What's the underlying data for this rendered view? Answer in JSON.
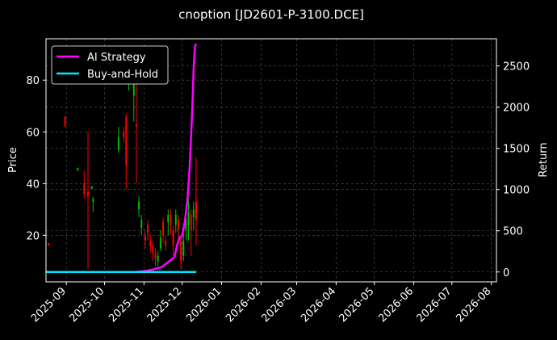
{
  "chart_data": {
    "type": "line",
    "title": "cnoption [JD2601-P-3100.DCE]",
    "xlabel": "",
    "ylabel": "Price",
    "y2label": "Return",
    "x_ticks": [
      "2025-09",
      "2025-10",
      "2025-11",
      "2025-12",
      "2026-01",
      "2026-02",
      "2026-03",
      "2026-04",
      "2026-05",
      "2026-06",
      "2026-07",
      "2026-08"
    ],
    "ylim": [
      2,
      96
    ],
    "y_ticks": [
      20,
      40,
      60,
      80
    ],
    "y2lim": [
      -120,
      2830
    ],
    "y2_ticks": [
      0,
      500,
      1000,
      1500,
      2000,
      2500
    ],
    "xlim": [
      "2025-08-16",
      "2026-08-05"
    ],
    "grid": true,
    "legend_position": "top-left",
    "colors": {
      "background": "#000000",
      "ai_strategy": "#ff00ff",
      "buy_and_hold": "#00e5ff",
      "candle_up": "#00c000",
      "candle_down": "#ff0000",
      "grid": "#555555"
    },
    "series": [
      {
        "name": "AI Strategy",
        "axis": "right",
        "color": "#ff00ff",
        "points": [
          [
            "2025-08-16",
            0
          ],
          [
            "2025-09-15",
            0
          ],
          [
            "2025-10-15",
            0
          ],
          [
            "2025-10-25",
            1
          ],
          [
            "2025-11-01",
            10
          ],
          [
            "2025-11-08",
            30
          ],
          [
            "2025-11-15",
            60
          ],
          [
            "2025-11-20",
            120
          ],
          [
            "2025-11-25",
            180
          ],
          [
            "2025-11-27",
            330
          ],
          [
            "2025-11-29",
            420
          ],
          [
            "2025-12-01",
            440
          ],
          [
            "2025-12-03",
            600
          ],
          [
            "2025-12-05",
            850
          ],
          [
            "2025-12-06",
            1050
          ],
          [
            "2025-12-07",
            1300
          ],
          [
            "2025-12-08",
            1650
          ],
          [
            "2025-12-09",
            2000
          ],
          [
            "2025-12-10",
            2450
          ],
          [
            "2025-12-11",
            2730
          ],
          [
            "2025-12-12",
            2770
          ]
        ]
      },
      {
        "name": "Buy-and-Hold",
        "axis": "right",
        "color": "#00e5ff",
        "points": [
          [
            "2025-08-16",
            0
          ],
          [
            "2025-12-12",
            0
          ]
        ]
      }
    ],
    "candles": [
      {
        "date": "2025-08-18",
        "open": 17,
        "close": 16,
        "high": 17,
        "low": 16
      },
      {
        "date": "2025-08-31",
        "open": 66,
        "close": 62,
        "high": 66,
        "low": 62
      },
      {
        "date": "2025-09-10",
        "open": 45,
        "close": 46,
        "high": 46,
        "low": 45
      },
      {
        "date": "2025-09-15",
        "open": 40,
        "close": 36,
        "high": 45,
        "low": 34
      },
      {
        "date": "2025-09-18",
        "open": 37,
        "close": 35,
        "high": 60,
        "low": 7
      },
      {
        "date": "2025-09-21",
        "open": 38,
        "close": 39,
        "high": 39,
        "low": 38
      },
      {
        "date": "2025-09-22",
        "open": 33,
        "close": 34,
        "high": 35,
        "low": 29
      },
      {
        "date": "2025-10-12",
        "open": 53,
        "close": 58,
        "high": 62,
        "low": 52
      },
      {
        "date": "2025-10-16",
        "open": 60,
        "close": 58,
        "high": 62,
        "low": 56
      },
      {
        "date": "2025-10-18",
        "open": 66,
        "close": 47,
        "high": 67,
        "low": 38
      },
      {
        "date": "2025-10-20",
        "open": 84,
        "close": 88,
        "high": 92,
        "low": 76
      },
      {
        "date": "2025-10-22",
        "open": 90,
        "close": 85,
        "high": 92,
        "low": 80
      },
      {
        "date": "2025-10-24",
        "open": 74,
        "close": 79,
        "high": 86,
        "low": 64
      },
      {
        "date": "2025-10-26",
        "open": 63,
        "close": 62,
        "high": 85,
        "low": 40
      },
      {
        "date": "2025-10-28",
        "open": 30,
        "close": 33,
        "high": 35,
        "low": 27
      },
      {
        "date": "2025-10-30",
        "open": 23,
        "close": 26,
        "high": 28,
        "low": 20
      },
      {
        "date": "2025-11-02",
        "open": 20,
        "close": 18,
        "high": 22,
        "low": 15
      },
      {
        "date": "2025-11-04",
        "open": 24,
        "close": 21,
        "high": 26,
        "low": 18
      },
      {
        "date": "2025-11-06",
        "open": 18,
        "close": 16,
        "high": 20,
        "low": 13
      },
      {
        "date": "2025-11-08",
        "open": 16,
        "close": 13,
        "high": 18,
        "low": 10
      },
      {
        "date": "2025-11-10",
        "open": 13,
        "close": 11,
        "high": 15,
        "low": 8
      },
      {
        "date": "2025-11-12",
        "open": 10,
        "close": 12,
        "high": 14,
        "low": 8
      },
      {
        "date": "2025-11-14",
        "open": 15,
        "close": 19,
        "high": 22,
        "low": 14
      },
      {
        "date": "2025-11-16",
        "open": 25,
        "close": 20,
        "high": 27,
        "low": 17
      },
      {
        "date": "2025-11-18",
        "open": 18,
        "close": 16,
        "high": 20,
        "low": 14
      },
      {
        "date": "2025-11-20",
        "open": 25,
        "close": 28,
        "high": 30,
        "low": 20
      },
      {
        "date": "2025-11-22",
        "open": 28,
        "close": 24,
        "high": 30,
        "low": 20
      },
      {
        "date": "2025-11-24",
        "open": 22,
        "close": 16,
        "high": 24,
        "low": 12
      },
      {
        "date": "2025-11-26",
        "open": 24,
        "close": 28,
        "high": 30,
        "low": 21
      },
      {
        "date": "2025-11-28",
        "open": 26,
        "close": 22,
        "high": 28,
        "low": 18
      },
      {
        "date": "2025-11-30",
        "open": 18,
        "close": 10,
        "high": 20,
        "low": 7
      },
      {
        "date": "2025-12-02",
        "open": 12,
        "close": 18,
        "high": 21,
        "low": 10
      },
      {
        "date": "2025-12-04",
        "open": 22,
        "close": 26,
        "high": 32,
        "low": 18
      },
      {
        "date": "2025-12-06",
        "open": 24,
        "close": 29,
        "high": 34,
        "low": 18
      },
      {
        "date": "2025-12-08",
        "open": 28,
        "close": 22,
        "high": 30,
        "low": 12
      },
      {
        "date": "2025-12-10",
        "open": 27,
        "close": 30,
        "high": 33,
        "low": 22
      },
      {
        "date": "2025-12-12",
        "open": 33,
        "close": 26,
        "high": 50,
        "low": 16
      }
    ]
  }
}
